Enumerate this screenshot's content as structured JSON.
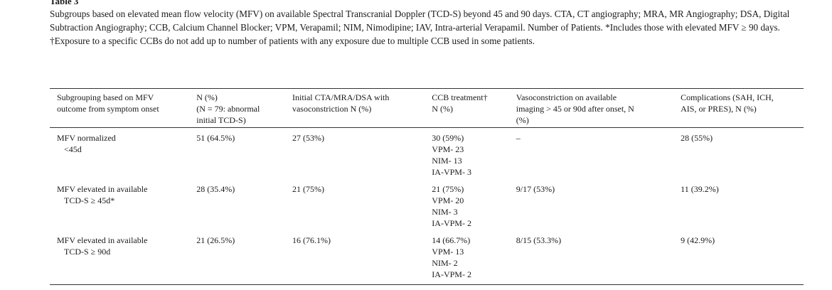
{
  "table_label": "Table 3",
  "caption": "Subgroups based on elevated mean flow velocity (MFV) on available Spectral Transcranial Doppler (TCD-S) beyond 45 and 90 days. CTA, CT angiography; MRA, MR Angiography; DSA, Digital Subtraction Angiography; CCB, Calcium Channel Blocker; VPM, Verapamil; NIM, Nimodipine; IAV, Intra-arterial Verapamil. Number of Patients. *Includes those with elevated MFV ≥ 90 days. †Exposure to a specific CCBs do not add up to number of patients with any exposure due to multiple CCB used in some patients.",
  "headers": [
    [
      "Subgrouping based on MFV",
      "outcome from symptom onset"
    ],
    [
      "N (%)",
      "(N = 79: abnormal",
      "initial TCD-S)"
    ],
    [
      "Initial CTA/MRA/DSA with",
      "vasoconstriction N (%)"
    ],
    [
      "CCB treatment†",
      "N (%)"
    ],
    [
      "Vasoconstriction on available",
      "imaging > 45 or 90d after onset, N",
      "(%)"
    ],
    [
      "Complications (SAH, ICH,",
      "AIS, or PRES), N (%)"
    ]
  ],
  "rows": [
    {
      "subgroup": [
        "MFV normalized",
        "<45d"
      ],
      "n": "51 (64.5%)",
      "initial_imaging": "27 (53%)",
      "ccb": [
        "30 (59%)",
        "VPM- 23",
        "NIM- 13",
        "IA-VPM- 3"
      ],
      "vasoconstriction": "–",
      "complications": "28 (55%)"
    },
    {
      "subgroup": [
        "MFV elevated in available",
        "TCD-S ≥ 45d*"
      ],
      "n": "28 (35.4%)",
      "initial_imaging": "21 (75%)",
      "ccb": [
        "21 (75%)",
        "VPM- 20",
        "NIM- 3",
        "IA-VPM- 2"
      ],
      "vasoconstriction": "9/17 (53%)",
      "complications": "11 (39.2%)"
    },
    {
      "subgroup": [
        "MFV elevated in available",
        "TCD-S ≥ 90d"
      ],
      "n": "21 (26.5%)",
      "initial_imaging": "16 (76.1%)",
      "ccb": [
        "14 (66.7%)",
        "VPM- 13",
        "NIM- 2",
        "IA-VPM- 2"
      ],
      "vasoconstriction": "8/15 (53.3%)",
      "complications": "9 (42.9%)"
    }
  ]
}
